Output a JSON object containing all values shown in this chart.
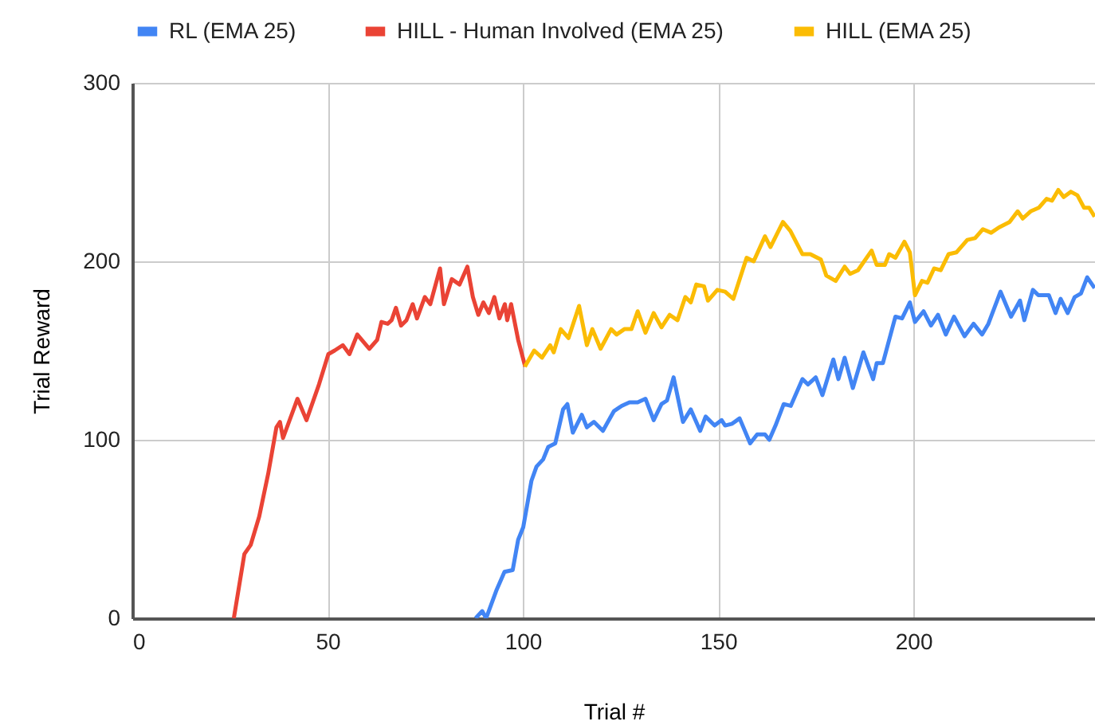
{
  "chart_data": {
    "type": "line",
    "xlabel": "Trial #",
    "ylabel": "Trial Reward",
    "xlim": [
      0,
      246.5
    ],
    "xticks": [
      0,
      50,
      100,
      150,
      200
    ],
    "ylim": [
      0,
      300
    ],
    "yticks": [
      0,
      100,
      200,
      300
    ],
    "grid": true,
    "legend": "top",
    "series": [
      {
        "name": "RL (EMA 25)",
        "color": "#4285f4",
        "x": [
          87.9,
          89.6,
          90.6,
          93.3,
          95.3,
          97.4,
          98.8,
          100.1,
          102.2,
          103.5,
          105.2,
          106.5,
          108.3,
          110.3,
          111.4,
          112.8,
          115.1,
          116.4,
          118.2,
          120.5,
          123.3,
          125.3,
          127.3,
          129.4,
          131.4,
          133.5,
          135.5,
          136.9,
          138.6,
          141,
          143,
          145.4,
          146.8,
          149.1,
          150.9,
          151.8,
          153.6,
          155.5,
          158.2,
          160,
          162,
          163.1,
          164.7,
          166.8,
          168.6,
          171.6,
          173,
          175,
          176.7,
          179.5,
          180.8,
          182.4,
          184.5,
          187.2,
          189.7,
          190.6,
          192.2,
          195.4,
          197.1,
          199.1,
          200.4,
          202.6,
          204.5,
          206.3,
          208.3,
          210.4,
          213.1,
          215.4,
          217.6,
          219.2,
          222.3,
          225,
          227.3,
          228.4,
          230.6,
          232,
          234.7,
          236.4,
          237.7,
          239.5,
          241.3,
          242.9,
          244.5,
          246.4
        ],
        "values": [
          0,
          4,
          0,
          16,
          26,
          27,
          44,
          51,
          77,
          85,
          89,
          96,
          98,
          117,
          120,
          104,
          114,
          107,
          110,
          105,
          116,
          119,
          121,
          121,
          123,
          111,
          120,
          122,
          135,
          110,
          117,
          105,
          113,
          108,
          111,
          108,
          109,
          112,
          98,
          103,
          103,
          100,
          108,
          120,
          119,
          134,
          131,
          135,
          125,
          145,
          134,
          146,
          129,
          149,
          134,
          143,
          143,
          169,
          168,
          177,
          166,
          172,
          164,
          170,
          159,
          169,
          158,
          165,
          159,
          165,
          183,
          169,
          178,
          167,
          184,
          181,
          181,
          171,
          179,
          171,
          180,
          182,
          191,
          185
        ]
      },
      {
        "name": "HILL - Human Involved (EMA 25)",
        "color": "#ea4335",
        "x": [
          26,
          28.7,
          30.3,
          32.5,
          34.8,
          36.9,
          37.8,
          38.6,
          42.3,
          44.6,
          47.8,
          50.2,
          51.8,
          53.9,
          55.6,
          57.6,
          60.7,
          62.7,
          63.8,
          65.4,
          66.4,
          67.5,
          68.8,
          70.2,
          71.8,
          72.9,
          74.9,
          76.3,
          78.8,
          79.8,
          81.8,
          83.8,
          85.8,
          87.2,
          88.6,
          89.9,
          91.3,
          92.7,
          94,
          95.4,
          96,
          97,
          98.8,
          100.6
        ],
        "values": [
          0,
          36,
          41,
          57,
          81,
          107,
          110,
          101,
          123,
          111,
          131,
          148,
          150,
          153,
          148,
          159,
          151,
          156,
          166,
          165,
          167,
          174,
          164,
          167,
          176,
          168,
          180,
          176,
          196,
          176,
          190,
          187,
          197,
          180,
          170,
          177,
          171,
          180,
          168,
          176,
          167,
          176,
          156,
          141
        ]
      },
      {
        "name": "HILL (EMA 25)",
        "color": "#fbbc04",
        "x": [
          100.5,
          102.9,
          104.9,
          107,
          107.9,
          109.7,
          111.7,
          114.4,
          116.4,
          117.8,
          119.9,
          122.6,
          124,
          126,
          127.8,
          129.4,
          131.4,
          133.5,
          135.5,
          137.6,
          139.6,
          141.6,
          143,
          144.4,
          146.4,
          147.4,
          149.8,
          151.8,
          153.9,
          157.3,
          159.1,
          162,
          163.4,
          166.6,
          168.5,
          171.6,
          173.6,
          176.3,
          177.7,
          180.1,
          182.4,
          183.8,
          185.8,
          189.3,
          190.6,
          192.7,
          193.8,
          195.4,
          197.7,
          199.1,
          200.4,
          202.2,
          203.6,
          205.3,
          207,
          209,
          211,
          213.8,
          215.8,
          217.8,
          219.9,
          221.9,
          224.6,
          226.7,
          228,
          230,
          232.1,
          234.1,
          235.5,
          237.1,
          238.5,
          240.3,
          242,
          243.7,
          245,
          246.4
        ],
        "values": [
          141,
          150,
          146,
          153,
          149,
          162,
          157,
          175,
          153,
          162,
          151,
          162,
          159,
          162,
          162,
          172,
          160,
          171,
          163,
          170,
          167,
          180,
          177,
          187,
          186,
          178,
          184,
          183,
          179,
          202,
          200,
          214,
          208,
          222,
          217,
          204,
          204,
          201,
          192,
          189,
          197,
          193,
          195,
          206,
          198,
          198,
          204,
          202,
          211,
          205,
          181,
          189,
          188,
          196,
          195,
          204,
          205,
          212,
          213,
          218,
          216,
          219,
          222,
          228,
          224,
          228,
          230,
          235,
          234,
          240,
          236,
          239,
          237,
          230,
          230,
          225
        ]
      }
    ]
  }
}
